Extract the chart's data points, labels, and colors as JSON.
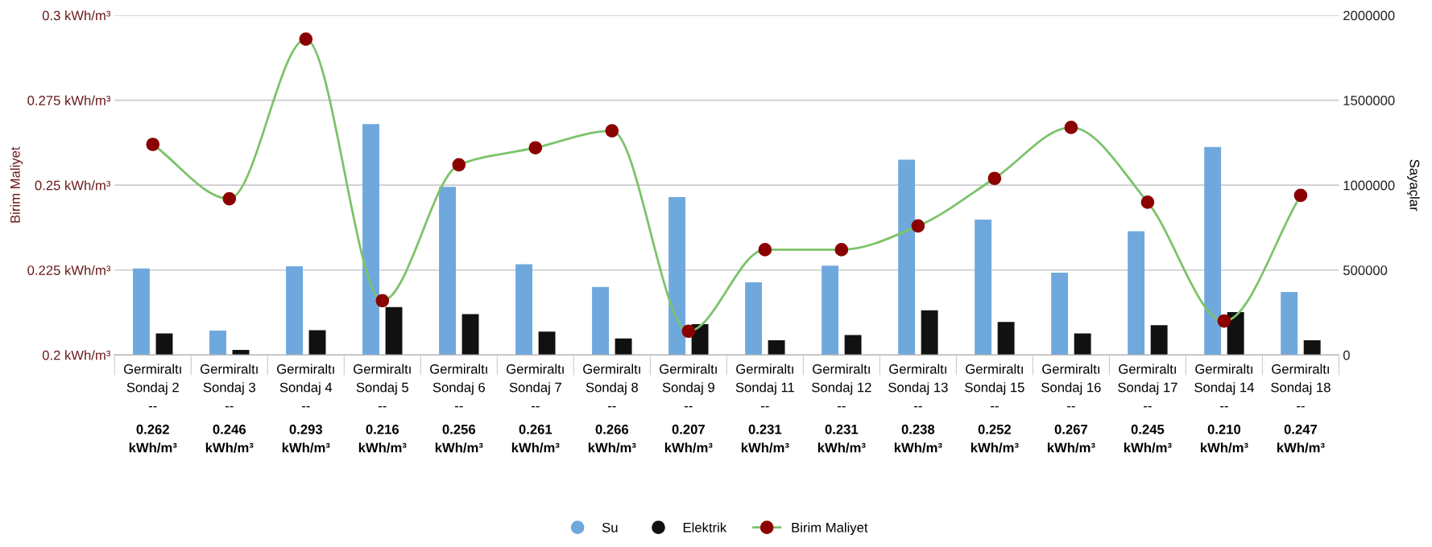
{
  "chart_data": {
    "type": "bar",
    "ylabel": "Birim Maliyet",
    "y2label": "Sayaçlar",
    "categories": [
      "Germiraltı\nSondaj 2\n--",
      "Germiraltı\nSondaj 3\n--",
      "Germiraltı\nSondaj 4\n--",
      "Germiraltı\nSondaj 5\n--",
      "Germiraltı\nSondaj 6\n--",
      "Germiraltı\nSondaj 7\n--",
      "Germiraltı\nSondaj 8\n--",
      "Germiraltı\nSondaj 9\n--",
      "Germiraltı\nSondaj 11\n--",
      "Germiraltı\nSondaj 12\n--",
      "Germiraltı\nSondaj 13\n--",
      "Germiraltı\nSondaj 15\n--",
      "Germiraltı\nSondaj 16\n--",
      "Germiraltı\nSondaj 17\n--",
      "Germiraltı\nSondaj 14\n--",
      "Germiraltı\nSondaj 18\n--"
    ],
    "series": [
      {
        "name": "Su",
        "axis": "y2",
        "color": "#6fa8dc",
        "values": [
          510000,
          144000,
          523000,
          1360000,
          990000,
          534000,
          400000,
          930000,
          428000,
          526000,
          1150000,
          797000,
          485000,
          729000,
          1225000,
          371000
        ]
      },
      {
        "name": "Elektrik",
        "axis": "y2",
        "color": "#111111",
        "values": [
          127000,
          30000,
          146000,
          282000,
          241000,
          138000,
          98000,
          182000,
          87000,
          117000,
          263000,
          195000,
          127000,
          176000,
          252000,
          87000
        ]
      },
      {
        "name": "Birim Maliyet",
        "type": "line",
        "axis": "y",
        "color": "#7cc36a",
        "colors": [
          "#8b0000",
          "#8b0000",
          "#8b0000",
          "#8b0000",
          "#8b0000",
          "#8b0000",
          "#8b0000",
          "#8b0000",
          "#8b0000",
          "#8b0000",
          "#8b0000",
          "#8b0000",
          "#8b0000",
          "#8b0000",
          "#8b0000",
          "#8b0000"
        ],
        "marker": "circle",
        "values": [
          0.262,
          0.246,
          0.293,
          0.216,
          0.256,
          0.261,
          0.266,
          0.207,
          0.231,
          0.231,
          0.238,
          0.252,
          0.267,
          0.245,
          0.21,
          0.247
        ],
        "value_labels": [
          "0.262\nkWh/m³",
          "0.246\nkWh/m³",
          "0.293\nkWh/m³",
          "0.216\nkWh/m³",
          "0.256\nkWh/m³",
          "0.261\nkWh/m³",
          "0.266\nkWh/m³",
          "0.207\nkWh/m³",
          "0.231\nkWh/m³",
          "0.231\nkWh/m³",
          "0.238\nkWh/m³",
          "0.252\nkWh/m³",
          "0.267\nkWh/m³",
          "0.245\nkWh/m³",
          "0.210\nkWh/m³",
          "0.247\nkWh/m³"
        ]
      }
    ],
    "ylim": [
      0.2,
      0.3
    ],
    "yticks": [
      {
        "value": 0.2,
        "label": "0.2 kWh/m³"
      },
      {
        "value": 0.225,
        "label": "0.225 kWh/m³"
      },
      {
        "value": 0.25,
        "label": "0.25 kWh/m³"
      },
      {
        "value": 0.275,
        "label": "0.275 kWh/m³"
      },
      {
        "value": 0.3,
        "label": "0.3 kWh/m³"
      }
    ],
    "y2lim": [
      0,
      2000000
    ],
    "y2ticks": [
      0,
      500000,
      1000000,
      1500000,
      2000000
    ],
    "grid": "y",
    "legend": "bottom"
  }
}
